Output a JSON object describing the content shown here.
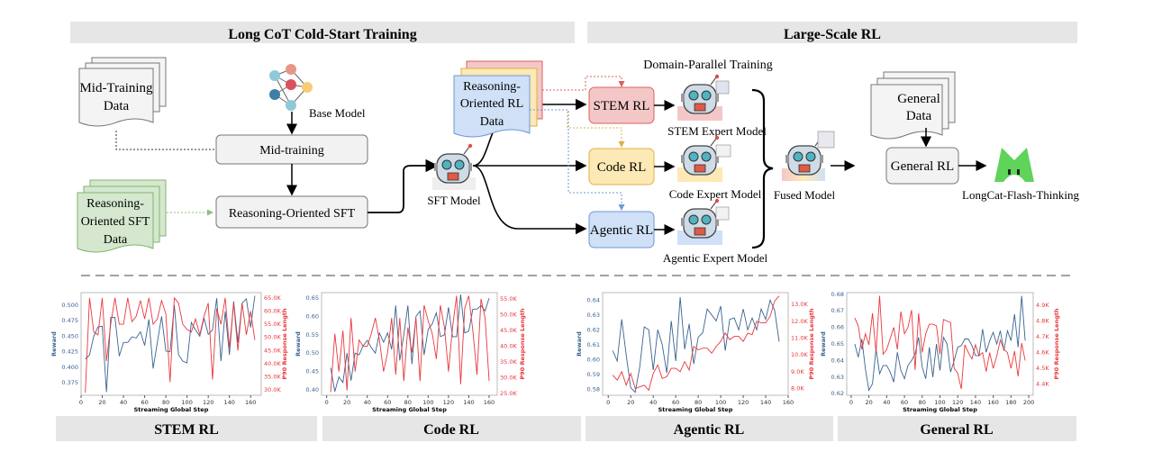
{
  "headers": {
    "left": "Long CoT Cold-Start Training",
    "right": "Large-Scale RL"
  },
  "nodes": {
    "mid_training_data": [
      "Mid-Training",
      "Data"
    ],
    "base_model": "Base Model",
    "mid_training": "Mid-training",
    "sft_data": [
      "Reasoning-",
      "Oriented SFT",
      "Data"
    ],
    "sft": "Reasoning-Oriented SFT",
    "rl_data": [
      "Reasoning-",
      "Oriented RL",
      "Data"
    ],
    "sft_model": "SFT Model",
    "domain_parallel": "Domain-Parallel Training",
    "stem_rl": "STEM RL",
    "code_rl": "Code RL",
    "agentic_rl": "Agentic RL",
    "stem_expert": "STEM Expert Model",
    "code_expert": "Code Expert Model",
    "agentic_expert": "Agentic Expert Model",
    "fused_model": "Fused Model",
    "general_data": [
      "General",
      "Data"
    ],
    "general_rl": "General RL",
    "final_model": "LongCat-Flash-Thinking"
  },
  "colors": {
    "stem": "#f4c7c7",
    "code": "#fde9b5",
    "agentic": "#cfe0f7",
    "sft_data": "#d5e8cf",
    "reward": "#3a6391",
    "length": "#e8383d",
    "logo": "#5fd35a",
    "header_bg": "#e6e6e6"
  },
  "icons": {
    "base_model": "neural-network-icon",
    "robot": "robot-icon",
    "logo": "longcat-logo"
  },
  "panel_labels": [
    "STEM RL",
    "Code RL",
    "Agentic RL",
    "General RL"
  ],
  "chart_data": [
    {
      "type": "line",
      "title": "STEM RL",
      "xlabel": "Streaming Global Step",
      "ylabel": "Reward",
      "y2label": "P90 Response Length",
      "xlim": [
        0,
        170
      ],
      "xticks": [
        "0",
        "20",
        "40",
        "60",
        "80",
        "100",
        "120",
        "140",
        "160"
      ],
      "ylim": [
        0.355,
        0.52
      ],
      "yticks": [
        "0.375",
        "0.400",
        "0.425",
        "0.450",
        "0.475",
        "0.500"
      ],
      "y2lim": [
        28,
        67
      ],
      "y2ticks": [
        "30.0K",
        "35.0K",
        "40.0K",
        "45.0K",
        "50.0K",
        "55.0K",
        "60.0K",
        "65.0K"
      ],
      "x_start": 4,
      "x_step": 4,
      "series": [
        {
          "axis": "left",
          "values": [
            0.413,
            0.42,
            0.45,
            0.465,
            0.466,
            0.36,
            0.48,
            0.48,
            0.418,
            0.44,
            0.44,
            0.449,
            0.447,
            0.457,
            0.435,
            0.477,
            0.398,
            0.44,
            0.482,
            0.426,
            0.425,
            0.5,
            0.42,
            0.41,
            0.407,
            0.472,
            0.46,
            0.45,
            0.479,
            0.453,
            0.46,
            0.511,
            0.41,
            0.49,
            0.42,
            0.506,
            0.44,
            0.503,
            0.51,
            0.464,
            0.515
          ]
        },
        {
          "axis": "right",
          "values": [
            29,
            65,
            52,
            51,
            65,
            41,
            55,
            65,
            55,
            55,
            65,
            56,
            58,
            64,
            57,
            65,
            55,
            57,
            64,
            59,
            33,
            65,
            63,
            55,
            53,
            52,
            57,
            51,
            58,
            63,
            34,
            61,
            55,
            65,
            46,
            63,
            45,
            63,
            51,
            60,
            49
          ]
        }
      ]
    },
    {
      "type": "line",
      "title": "Code RL",
      "xlabel": "Streaming Global Step",
      "ylabel": "Reward",
      "y2label": "P90 Response Length",
      "xlim": [
        -5,
        168
      ],
      "xticks": [
        "0",
        "20",
        "40",
        "60",
        "80",
        "100",
        "120",
        "140",
        "160"
      ],
      "ylim": [
        0.385,
        0.665
      ],
      "yticks": [
        "0.40",
        "0.45",
        "0.50",
        "0.55",
        "0.60",
        "0.65"
      ],
      "y2lim": [
        24.5,
        57
      ],
      "y2ticks": [
        "25.0K",
        "30.0K",
        "35.0K",
        "40.0K",
        "45.0K",
        "50.0K",
        "55.0K"
      ],
      "x_start": 4,
      "x_step": 4,
      "series": [
        {
          "axis": "left",
          "values": [
            0.46,
            0.395,
            0.435,
            0.42,
            0.5,
            0.425,
            0.5,
            0.495,
            0.52,
            0.535,
            0.515,
            0.5,
            0.555,
            0.53,
            0.555,
            0.51,
            0.63,
            0.48,
            0.55,
            0.63,
            0.47,
            0.6,
            0.615,
            0.495,
            0.565,
            0.58,
            0.61,
            0.545,
            0.55,
            0.625,
            0.545,
            0.545,
            0.66,
            0.555,
            0.56,
            0.62,
            0.62,
            0.63,
            0.615,
            0.65
          ]
        },
        {
          "axis": "right",
          "values": [
            25.5,
            44,
            32,
            45,
            26,
            49,
            32,
            42,
            40,
            40,
            44,
            49,
            42,
            32,
            38,
            49,
            31,
            49,
            29,
            46,
            38,
            49,
            29,
            53,
            48,
            44,
            36,
            53,
            46,
            32,
            46,
            56,
            28,
            52,
            56,
            45,
            31,
            55,
            49,
            29
          ]
        }
      ]
    },
    {
      "type": "line",
      "title": "Agentic RL",
      "xlabel": "Streaming Global Step",
      "ylabel": "Reward",
      "y2label": "P90 Response Length",
      "xlim": [
        -5,
        160
      ],
      "xticks": [
        "0",
        "20",
        "40",
        "60",
        "80",
        "100",
        "120",
        "140",
        "160"
      ],
      "ylim": [
        0.576,
        0.645
      ],
      "yticks": [
        "0.58",
        "0.59",
        "0.60",
        "0.61",
        "0.62",
        "0.63",
        "0.64"
      ],
      "y2lim": [
        7.6,
        13.7
      ],
      "y2ticks": [
        "8.0K",
        "9.0K",
        "10.0K",
        "11.0K",
        "12.0K",
        "13.0K"
      ],
      "x_start": 4,
      "x_step": 4,
      "series": [
        {
          "axis": "left",
          "values": [
            0.606,
            0.599,
            0.627,
            0.603,
            0.581,
            0.578,
            0.595,
            0.622,
            0.62,
            0.593,
            0.62,
            0.61,
            0.591,
            0.626,
            0.599,
            0.642,
            0.607,
            0.624,
            0.597,
            0.615,
            0.618,
            0.634,
            0.63,
            0.626,
            0.636,
            0.606,
            0.627,
            0.628,
            0.62,
            0.634,
            0.62,
            0.628,
            0.62,
            0.634,
            0.627,
            0.64,
            0.633,
            0.612
          ]
        },
        {
          "axis": "right",
          "values": [
            8.8,
            8.5,
            9.0,
            8.2,
            8.9,
            8.0,
            8.1,
            8.2,
            7.9,
            8.9,
            9.4,
            8.6,
            8.7,
            9.2,
            9.2,
            9.0,
            9.6,
            9.1,
            10.5,
            10.3,
            10.4,
            10.4,
            10.1,
            10.5,
            10.8,
            11.3,
            10.9,
            11.1,
            11.1,
            10.8,
            11.3,
            11.2,
            12.0,
            11.9,
            11.9,
            12.3,
            13.2,
            13.5
          ]
        }
      ]
    },
    {
      "type": "line",
      "title": "General RL",
      "xlabel": "Streaming Global Step",
      "ylabel": "Reward",
      "y2label": "P90 Response Length",
      "xlim": [
        -5,
        205
      ],
      "xticks": [
        "0",
        "20",
        "40",
        "60",
        "80",
        "100",
        "120",
        "140",
        "160",
        "180",
        "200"
      ],
      "ylim": [
        0.619,
        0.681
      ],
      "yticks": [
        "0.62",
        "0.63",
        "0.64",
        "0.65",
        "0.66",
        "0.67",
        "0.68"
      ],
      "y2lim": [
        4.33,
        4.98
      ],
      "y2ticks": [
        "4.4K",
        "4.5K",
        "4.6K",
        "4.7K",
        "4.8K",
        "4.9K"
      ],
      "x_start": 4,
      "x_step": 4,
      "series": [
        {
          "axis": "left",
          "values": [
            0.65,
            0.642,
            0.653,
            0.635,
            0.622,
            0.626,
            0.647,
            0.632,
            0.637,
            0.637,
            0.633,
            0.627,
            0.645,
            0.634,
            0.629,
            0.637,
            0.64,
            0.644,
            0.654,
            0.636,
            0.629,
            0.648,
            0.63,
            0.65,
            0.634,
            0.654,
            0.65,
            0.633,
            0.64,
            0.648,
            0.649,
            0.653,
            0.653,
            0.649,
            0.643,
            0.643,
            0.659,
            0.645,
            0.652,
            0.657,
            0.65,
            0.658,
            0.646,
            0.658,
            0.652,
            0.668,
            0.648,
            0.679,
            0.652
          ]
        },
        {
          "axis": "right",
          "values": [
            4.82,
            4.77,
            4.62,
            4.72,
            4.65,
            4.85,
            4.6,
            4.96,
            4.59,
            4.62,
            4.69,
            4.76,
            4.62,
            4.86,
            4.72,
            4.76,
            4.87,
            4.49,
            4.85,
            4.6,
            4.72,
            4.78,
            4.78,
            4.77,
            4.59,
            4.81,
            4.8,
            4.79,
            4.5,
            4.47,
            4.37,
            4.65,
            4.6,
            4.56,
            4.65,
            4.58,
            4.6,
            4.48,
            4.6,
            4.5,
            4.58,
            4.68,
            4.62,
            4.6,
            4.5,
            4.61,
            4.45,
            4.66,
            4.55
          ]
        }
      ]
    }
  ]
}
